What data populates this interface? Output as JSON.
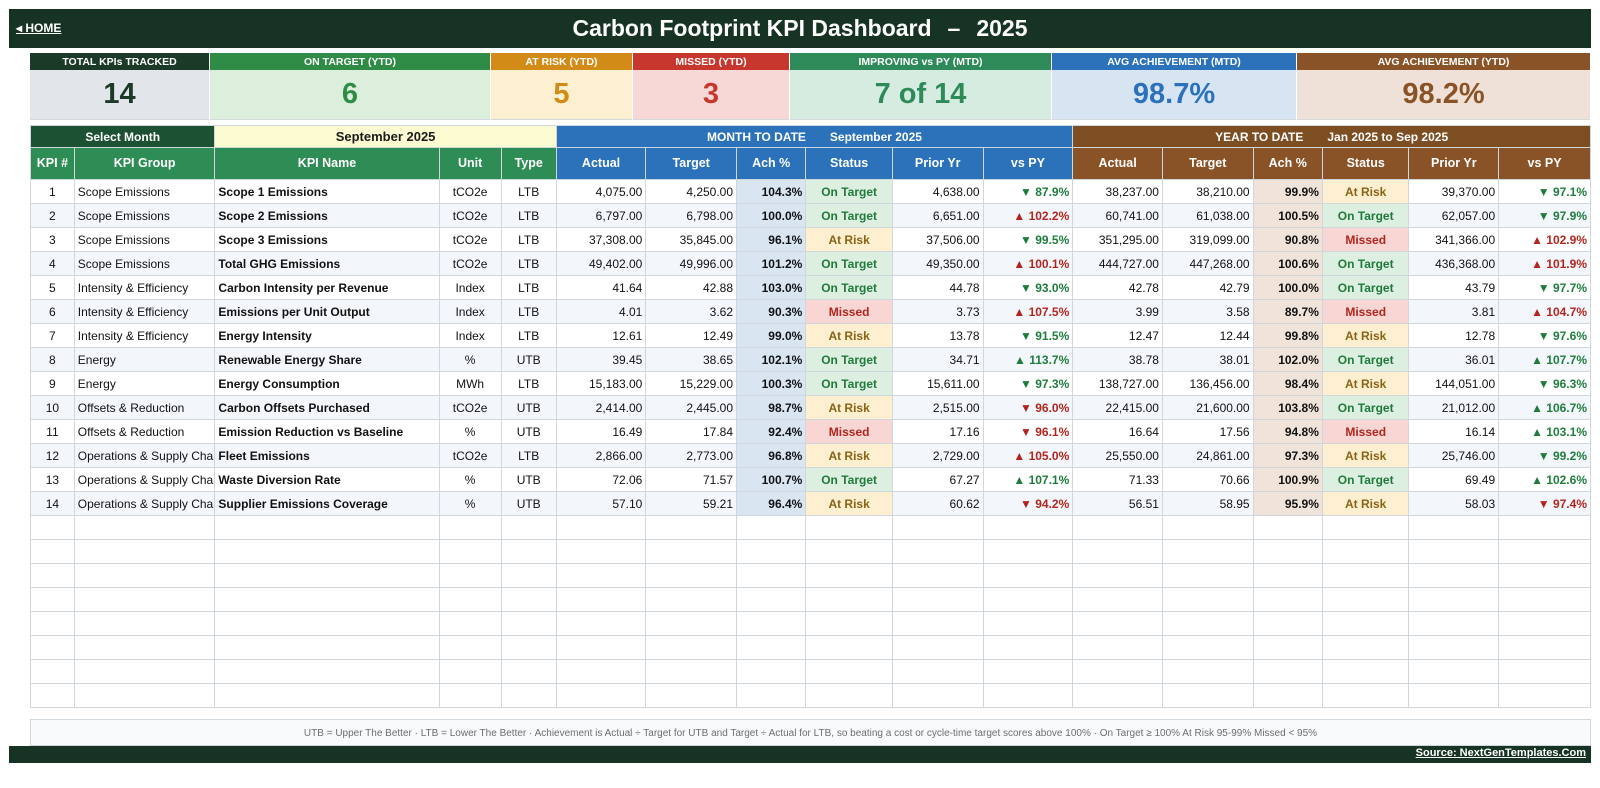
{
  "header": {
    "home_label": "◂ HOME",
    "title": "Carbon Footprint KPI Dashboard",
    "dash": "–",
    "year": "2025"
  },
  "kpi_cards": [
    {
      "label": "TOTAL KPIs TRACKED",
      "value": "14",
      "head_color": "#1c3a28",
      "body_color": "#e2e6eb",
      "value_color": "#1c3a28"
    },
    {
      "label": "ON TARGET (YTD)",
      "value": "6",
      "head_color": "#2e8c46",
      "body_color": "#dcefdc",
      "value_color": "#2e8c46"
    },
    {
      "label": "AT RISK (YTD)",
      "value": "5",
      "head_color": "#d28b16",
      "body_color": "#fdf0d0",
      "value_color": "#d28b16"
    },
    {
      "label": "MISSED (YTD)",
      "value": "3",
      "head_color": "#c8372d",
      "body_color": "#f8d8d6",
      "value_color": "#c8372d"
    },
    {
      "label": "IMPROVING vs PY (MTD)",
      "value": "7 of 14",
      "head_color": "#2f8a5a",
      "body_color": "#d7ece1",
      "value_color": "#2f8a5a"
    },
    {
      "label": "AVG ACHIEVEMENT (MTD)",
      "value": "98.7%",
      "head_color": "#2b72bb",
      "body_color": "#d7e5f3",
      "value_color": "#2b72bb"
    },
    {
      "label": "AVG ACHIEVEMENT (YTD)",
      "value": "98.2%",
      "head_color": "#8a5327",
      "body_color": "#efe1d8",
      "value_color": "#8a5327"
    }
  ],
  "selector": {
    "label": "Select Month",
    "value": "September 2025"
  },
  "sections": {
    "mtd_label": "MONTH TO DATE",
    "mtd_period": "September 2025",
    "ytd_label": "YEAR TO DATE",
    "ytd_period": "Jan 2025  to  Sep 2025"
  },
  "columns": {
    "kpi_no": "KPI #",
    "group": "KPI Group",
    "name": "KPI Name",
    "unit": "Unit",
    "type": "Type",
    "mtd": [
      "Actual",
      "Target",
      "Ach %",
      "Status",
      "Prior Yr",
      "vs PY"
    ],
    "ytd": [
      "Actual",
      "Target",
      "Ach %",
      "Status",
      "Prior Yr",
      "vs PY"
    ]
  },
  "rows": [
    {
      "no": "1",
      "group": "Scope Emissions",
      "name": "Scope 1 Emissions",
      "unit": "tCO2e",
      "type": "LTB",
      "m_actual": "4,075.00",
      "m_target": "4,250.00",
      "m_ach": "104.3%",
      "m_status": "On Target",
      "m_prior": "4,638.00",
      "m_vspy": "▼ 87.9%",
      "m_vspy_good": true,
      "y_actual": "38,237.00",
      "y_target": "38,210.00",
      "y_ach": "99.9%",
      "y_status": "At Risk",
      "y_prior": "39,370.00",
      "y_vspy": "▼ 97.1%",
      "y_vspy_good": true
    },
    {
      "no": "2",
      "group": "Scope Emissions",
      "name": "Scope 2 Emissions",
      "unit": "tCO2e",
      "type": "LTB",
      "m_actual": "6,797.00",
      "m_target": "6,798.00",
      "m_ach": "100.0%",
      "m_status": "On Target",
      "m_prior": "6,651.00",
      "m_vspy": "▲ 102.2%",
      "m_vspy_good": false,
      "y_actual": "60,741.00",
      "y_target": "61,038.00",
      "y_ach": "100.5%",
      "y_status": "On Target",
      "y_prior": "62,057.00",
      "y_vspy": "▼ 97.9%",
      "y_vspy_good": true
    },
    {
      "no": "3",
      "group": "Scope Emissions",
      "name": "Scope 3 Emissions",
      "unit": "tCO2e",
      "type": "LTB",
      "m_actual": "37,308.00",
      "m_target": "35,845.00",
      "m_ach": "96.1%",
      "m_status": "At Risk",
      "m_prior": "37,506.00",
      "m_vspy": "▼ 99.5%",
      "m_vspy_good": true,
      "y_actual": "351,295.00",
      "y_target": "319,099.00",
      "y_ach": "90.8%",
      "y_status": "Missed",
      "y_prior": "341,366.00",
      "y_vspy": "▲ 102.9%",
      "y_vspy_good": false
    },
    {
      "no": "4",
      "group": "Scope Emissions",
      "name": "Total GHG Emissions",
      "unit": "tCO2e",
      "type": "LTB",
      "m_actual": "49,402.00",
      "m_target": "49,996.00",
      "m_ach": "101.2%",
      "m_status": "On Target",
      "m_prior": "49,350.00",
      "m_vspy": "▲ 100.1%",
      "m_vspy_good": false,
      "y_actual": "444,727.00",
      "y_target": "447,268.00",
      "y_ach": "100.6%",
      "y_status": "On Target",
      "y_prior": "436,368.00",
      "y_vspy": "▲ 101.9%",
      "y_vspy_good": false
    },
    {
      "no": "5",
      "group": "Intensity & Efficiency",
      "name": "Carbon Intensity per Revenue",
      "unit": "Index",
      "type": "LTB",
      "m_actual": "41.64",
      "m_target": "42.88",
      "m_ach": "103.0%",
      "m_status": "On Target",
      "m_prior": "44.78",
      "m_vspy": "▼ 93.0%",
      "m_vspy_good": true,
      "y_actual": "42.78",
      "y_target": "42.79",
      "y_ach": "100.0%",
      "y_status": "On Target",
      "y_prior": "43.79",
      "y_vspy": "▼ 97.7%",
      "y_vspy_good": true
    },
    {
      "no": "6",
      "group": "Intensity & Efficiency",
      "name": "Emissions per Unit Output",
      "unit": "Index",
      "type": "LTB",
      "m_actual": "4.01",
      "m_target": "3.62",
      "m_ach": "90.3%",
      "m_status": "Missed",
      "m_prior": "3.73",
      "m_vspy": "▲ 107.5%",
      "m_vspy_good": false,
      "y_actual": "3.99",
      "y_target": "3.58",
      "y_ach": "89.7%",
      "y_status": "Missed",
      "y_prior": "3.81",
      "y_vspy": "▲ 104.7%",
      "y_vspy_good": false
    },
    {
      "no": "7",
      "group": "Intensity & Efficiency",
      "name": "Energy Intensity",
      "unit": "Index",
      "type": "LTB",
      "m_actual": "12.61",
      "m_target": "12.49",
      "m_ach": "99.0%",
      "m_status": "At Risk",
      "m_prior": "13.78",
      "m_vspy": "▼ 91.5%",
      "m_vspy_good": true,
      "y_actual": "12.47",
      "y_target": "12.44",
      "y_ach": "99.8%",
      "y_status": "At Risk",
      "y_prior": "12.78",
      "y_vspy": "▼ 97.6%",
      "y_vspy_good": true
    },
    {
      "no": "8",
      "group": "Energy",
      "name": "Renewable Energy Share",
      "unit": "%",
      "type": "UTB",
      "m_actual": "39.45",
      "m_target": "38.65",
      "m_ach": "102.1%",
      "m_status": "On Target",
      "m_prior": "34.71",
      "m_vspy": "▲ 113.7%",
      "m_vspy_good": true,
      "y_actual": "38.78",
      "y_target": "38.01",
      "y_ach": "102.0%",
      "y_status": "On Target",
      "y_prior": "36.01",
      "y_vspy": "▲ 107.7%",
      "y_vspy_good": true
    },
    {
      "no": "9",
      "group": "Energy",
      "name": "Energy Consumption",
      "unit": "MWh",
      "type": "LTB",
      "m_actual": "15,183.00",
      "m_target": "15,229.00",
      "m_ach": "100.3%",
      "m_status": "On Target",
      "m_prior": "15,611.00",
      "m_vspy": "▼ 97.3%",
      "m_vspy_good": true,
      "y_actual": "138,727.00",
      "y_target": "136,456.00",
      "y_ach": "98.4%",
      "y_status": "At Risk",
      "y_prior": "144,051.00",
      "y_vspy": "▼ 96.3%",
      "y_vspy_good": true
    },
    {
      "no": "10",
      "group": "Offsets & Reduction",
      "name": "Carbon Offsets Purchased",
      "unit": "tCO2e",
      "type": "UTB",
      "m_actual": "2,414.00",
      "m_target": "2,445.00",
      "m_ach": "98.7%",
      "m_status": "At Risk",
      "m_prior": "2,515.00",
      "m_vspy": "▼ 96.0%",
      "m_vspy_good": false,
      "y_actual": "22,415.00",
      "y_target": "21,600.00",
      "y_ach": "103.8%",
      "y_status": "On Target",
      "y_prior": "21,012.00",
      "y_vspy": "▲ 106.7%",
      "y_vspy_good": true
    },
    {
      "no": "11",
      "group": "Offsets & Reduction",
      "name": "Emission Reduction vs Baseline",
      "unit": "%",
      "type": "UTB",
      "m_actual": "16.49",
      "m_target": "17.84",
      "m_ach": "92.4%",
      "m_status": "Missed",
      "m_prior": "17.16",
      "m_vspy": "▼ 96.1%",
      "m_vspy_good": false,
      "y_actual": "16.64",
      "y_target": "17.56",
      "y_ach": "94.8%",
      "y_status": "Missed",
      "y_prior": "16.14",
      "y_vspy": "▲ 103.1%",
      "y_vspy_good": true
    },
    {
      "no": "12",
      "group": "Operations & Supply Cha",
      "name": "Fleet Emissions",
      "unit": "tCO2e",
      "type": "LTB",
      "m_actual": "2,866.00",
      "m_target": "2,773.00",
      "m_ach": "96.8%",
      "m_status": "At Risk",
      "m_prior": "2,729.00",
      "m_vspy": "▲ 105.0%",
      "m_vspy_good": false,
      "y_actual": "25,550.00",
      "y_target": "24,861.00",
      "y_ach": "97.3%",
      "y_status": "At Risk",
      "y_prior": "25,746.00",
      "y_vspy": "▼ 99.2%",
      "y_vspy_good": true
    },
    {
      "no": "13",
      "group": "Operations & Supply Cha",
      "name": "Waste Diversion Rate",
      "unit": "%",
      "type": "UTB",
      "m_actual": "72.06",
      "m_target": "71.57",
      "m_ach": "100.7%",
      "m_status": "On Target",
      "m_prior": "67.27",
      "m_vspy": "▲ 107.1%",
      "m_vspy_good": true,
      "y_actual": "71.33",
      "y_target": "70.66",
      "y_ach": "100.9%",
      "y_status": "On Target",
      "y_prior": "69.49",
      "y_vspy": "▲ 102.6%",
      "y_vspy_good": true
    },
    {
      "no": "14",
      "group": "Operations & Supply Cha",
      "name": "Supplier Emissions Coverage",
      "unit": "%",
      "type": "UTB",
      "m_actual": "57.10",
      "m_target": "59.21",
      "m_ach": "96.4%",
      "m_status": "At Risk",
      "m_prior": "60.62",
      "m_vspy": "▼ 94.2%",
      "m_vspy_good": false,
      "y_actual": "56.51",
      "y_target": "58.95",
      "y_ach": "95.9%",
      "y_status": "At Risk",
      "y_prior": "58.03",
      "y_vspy": "▼ 97.4%",
      "y_vspy_good": false
    }
  ],
  "empty_rows": 8,
  "legend_text": "UTB = Upper The Better   ·   LTB = Lower The Better   ·   Achievement is Actual ÷ Target for UTB and Target ÷ Actual for LTB, so beating a cost or cycle-time target scores above 100%   ·   On Target ≥ 100%    At Risk 95-99%    Missed < 95%",
  "source_label": "Source: NextGenTemplates.Com"
}
